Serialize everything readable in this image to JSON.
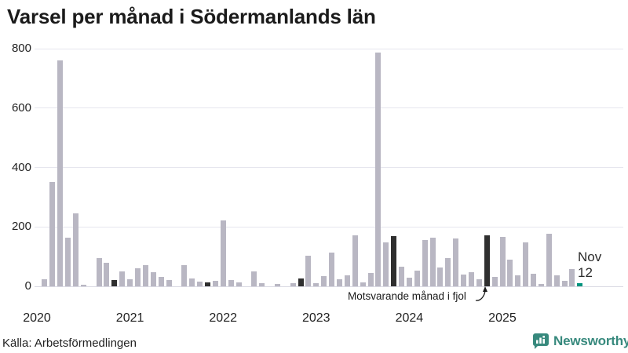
{
  "title": "Varsel per månad i Södermanlands län",
  "source": "Källa: Arbetsförmedlingen",
  "branding": {
    "name": "Newsworthy",
    "color": "#37897d"
  },
  "annotation": {
    "text": "Motsvarande månad i fjol"
  },
  "latest_label": {
    "month": "Nov",
    "value": "12"
  },
  "colors": {
    "bar": "#b9b7c3",
    "highlight": "#2f2f2f",
    "accent": "#00947e",
    "grid": "#e6e6ee",
    "text": "#222222"
  },
  "chart_data": {
    "type": "bar",
    "title": "Varsel per månad i Södermanlands län",
    "xlabel": "",
    "ylabel": "",
    "ylim": [
      0,
      800
    ],
    "y_ticks": [
      0,
      200,
      400,
      600,
      800
    ],
    "grid": true,
    "legend": "none",
    "x_year_labels": [
      "2020",
      "2021",
      "2022",
      "2023",
      "2024",
      "2025"
    ],
    "start_month": "2020-01",
    "end_month": "2025-11",
    "highlight_rule": "every November is dark; latest month (Nov 2025) is teal accent",
    "annotated_point": {
      "month": "2024-11",
      "value": 172,
      "note": "Motsvarande månad i fjol"
    },
    "latest_point": {
      "month": "2025-11",
      "value": 12
    },
    "values": [
      0,
      25,
      350,
      760,
      165,
      245,
      5,
      0,
      95,
      80,
      20,
      50,
      25,
      62,
      71,
      47,
      33,
      22,
      0,
      72,
      26,
      17,
      13,
      18,
      222,
      20,
      13,
      0,
      50,
      10,
      0,
      9,
      0,
      10,
      27,
      102,
      11,
      35,
      113,
      23,
      36,
      172,
      13,
      46,
      787,
      148,
      170,
      66,
      29,
      53,
      155,
      163,
      64,
      95,
      160,
      40,
      47,
      25,
      172,
      32,
      166,
      90,
      37,
      148,
      42,
      9,
      178,
      38,
      18,
      58,
      12
    ]
  }
}
